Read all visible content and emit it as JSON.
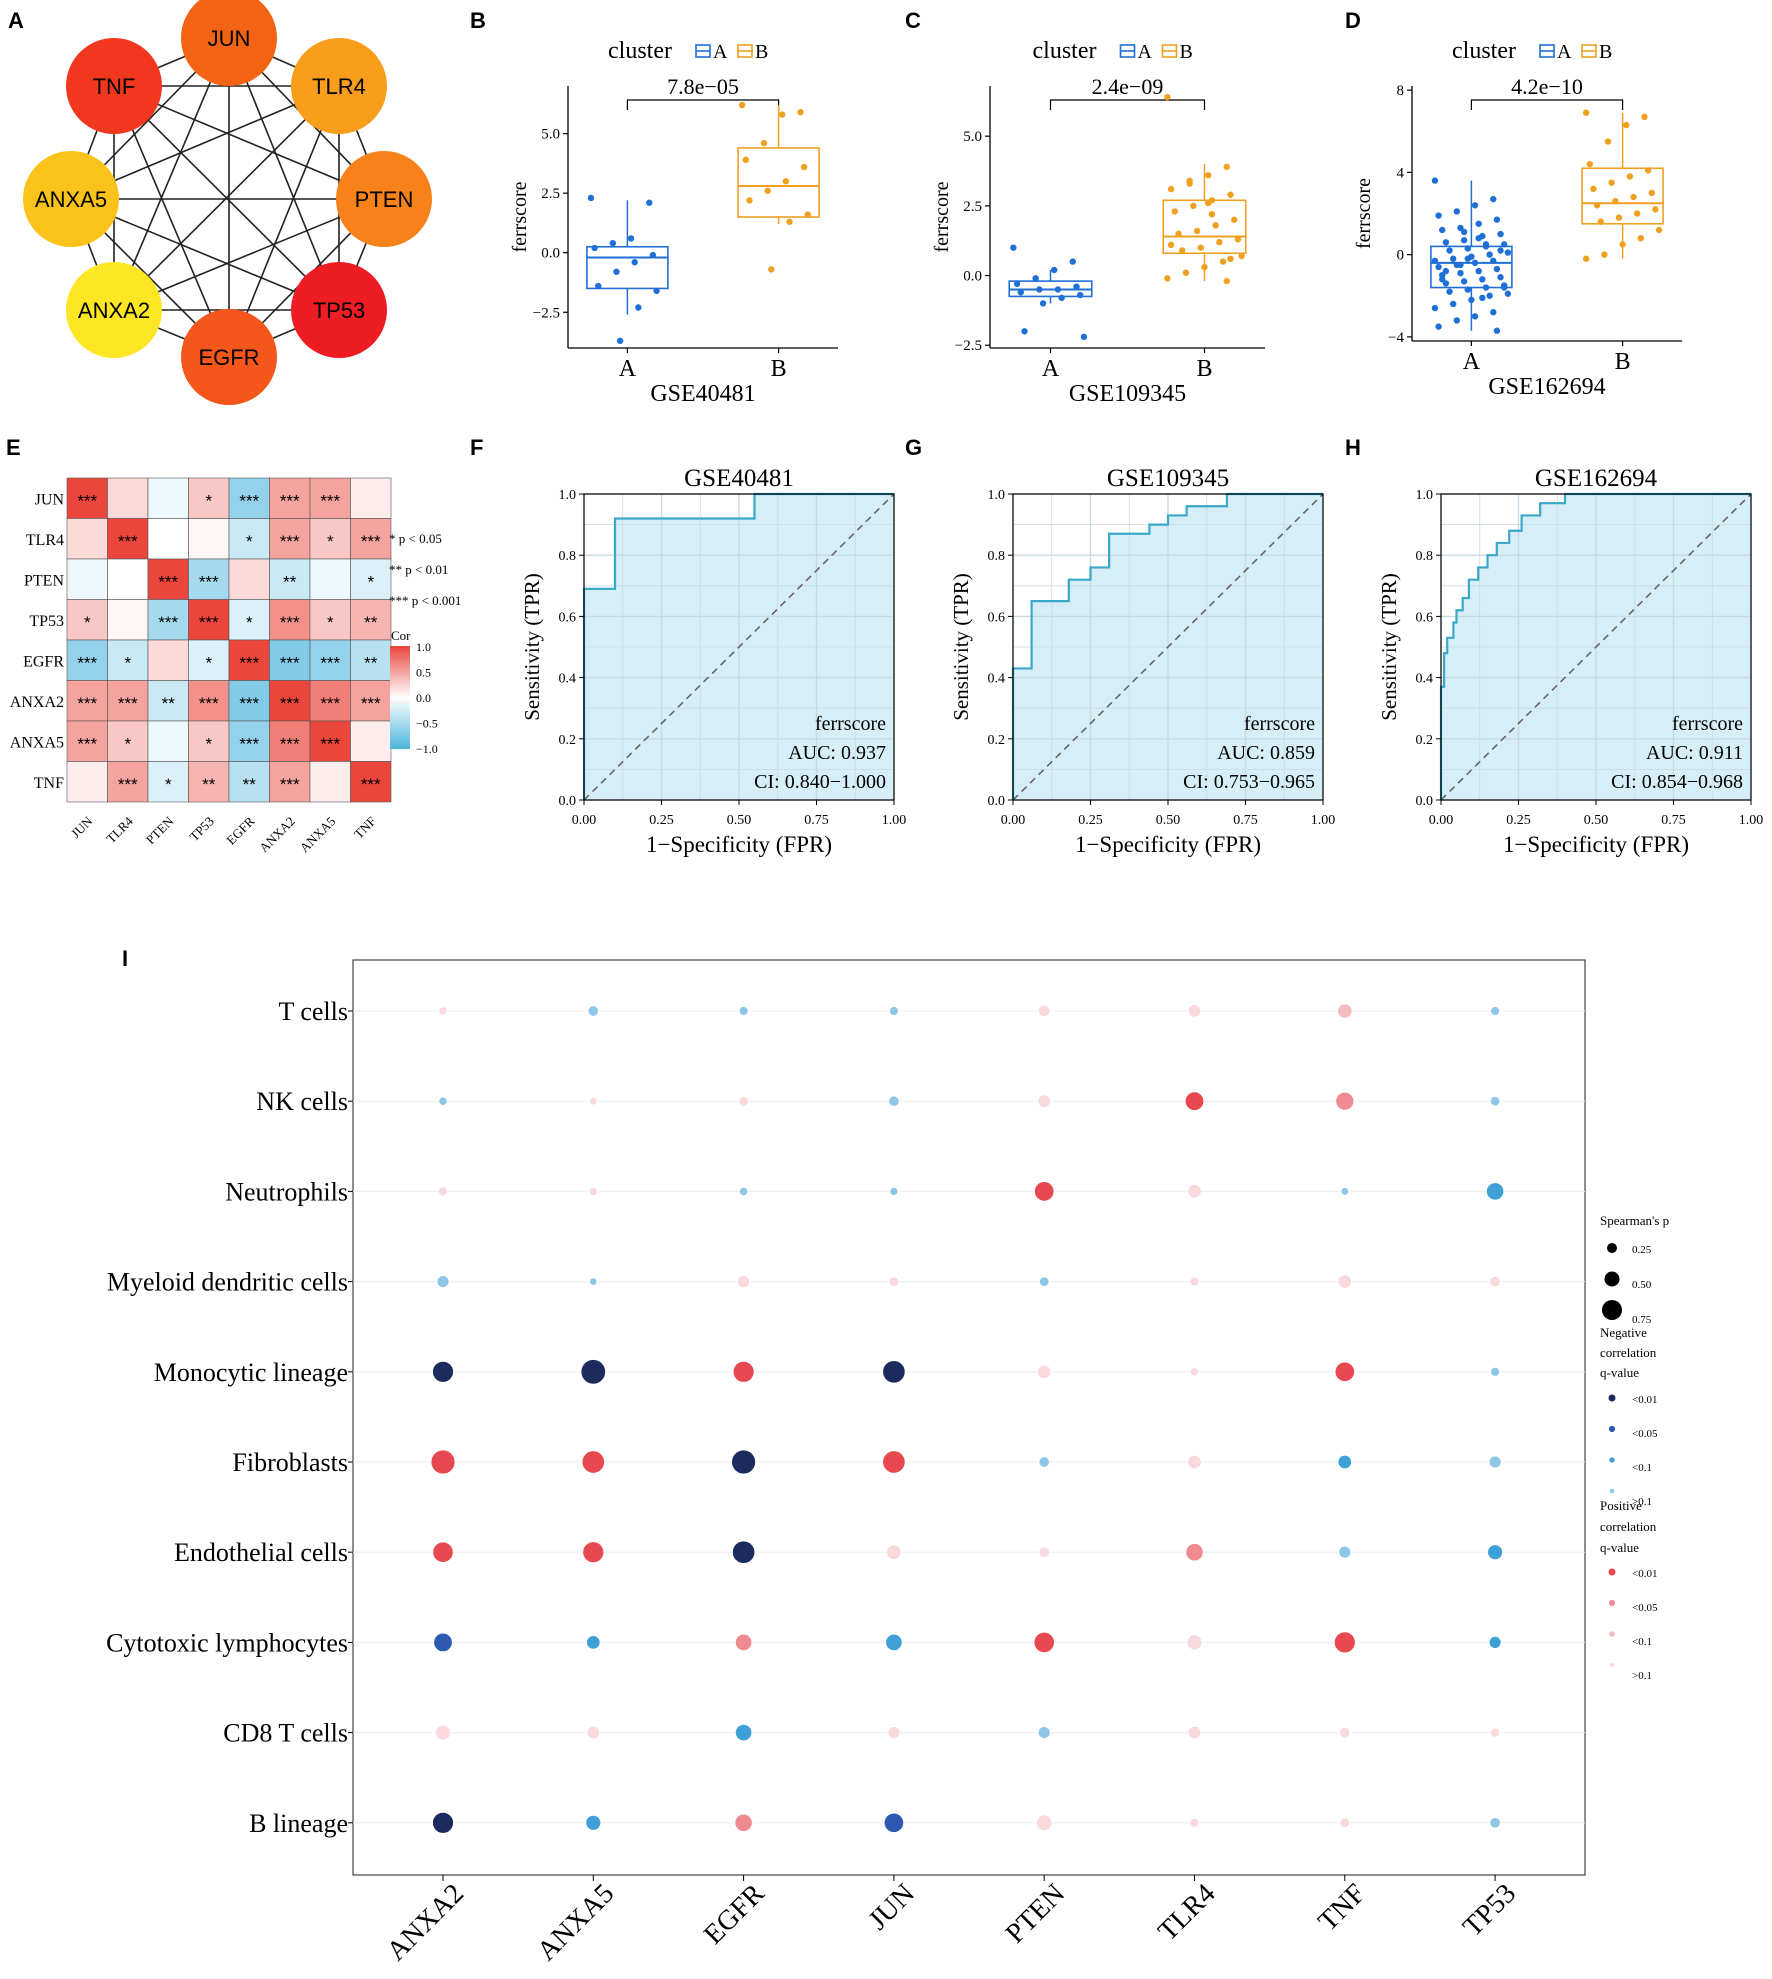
{
  "panels": [
    "A",
    "B",
    "C",
    "D",
    "E",
    "F",
    "G",
    "H",
    "I"
  ],
  "chart_data": [
    {
      "id": "A",
      "type": "network",
      "nodes": [
        {
          "name": "JUN",
          "color": "#f26313"
        },
        {
          "name": "TLR4",
          "color": "#f99d1c"
        },
        {
          "name": "PTEN",
          "color": "#f7821a"
        },
        {
          "name": "TP53",
          "color": "#ee1c23"
        },
        {
          "name": "EGFR",
          "color": "#f4561b"
        },
        {
          "name": "ANXA2",
          "color": "#fde724"
        },
        {
          "name": "ANXA5",
          "color": "#fbc21b"
        },
        {
          "name": "TNF",
          "color": "#f1381f"
        }
      ],
      "edges": "complete"
    },
    {
      "id": "B",
      "type": "box",
      "legend_title": "cluster",
      "legend_entries": [
        "A",
        "B"
      ],
      "groups": [
        "A",
        "B"
      ],
      "xlabel": "GSE40481",
      "ylabel": "ferrscore",
      "pvalue": "7.8e−05",
      "yticks": [
        -2.5,
        0,
        2.5,
        5.0
      ],
      "ytick_labels": [
        "−2.5",
        "0.0",
        "2.5",
        "5.0"
      ],
      "ylim": [
        -4.0,
        7.0
      ],
      "stats": [
        {
          "q1": -1.5,
          "median": -0.2,
          "q3": 0.25,
          "wlo": -2.6,
          "whi": 2.2
        },
        {
          "q1": 1.5,
          "median": 2.8,
          "q3": 4.4,
          "wlo": 1.2,
          "whi": 6.2
        }
      ],
      "points": [
        [
          2.3,
          2.1,
          0.6,
          0.4,
          0.2,
          -0.1,
          -0.4,
          -0.8,
          -1.4,
          -1.6,
          -2.3,
          -3.7
        ],
        [
          6.2,
          5.9,
          5.8,
          4.6,
          3.9,
          3.6,
          3.0,
          2.6,
          2.2,
          1.6,
          1.3,
          -0.7
        ]
      ]
    },
    {
      "id": "C",
      "type": "box",
      "legend_title": "cluster",
      "legend_entries": [
        "A",
        "B"
      ],
      "groups": [
        "A",
        "B"
      ],
      "xlabel": "GSE109345",
      "ylabel": "ferrscore",
      "pvalue": "2.4e−09",
      "yticks": [
        -2.5,
        0,
        2.5,
        5.0
      ],
      "ytick_labels": [
        "−2.5",
        "0.0",
        "2.5",
        "5.0"
      ],
      "ylim": [
        -2.6,
        6.8
      ],
      "stats": [
        {
          "q1": -0.75,
          "median": -0.5,
          "q3": -0.2,
          "wlo": -1.0,
          "whi": 0.2
        },
        {
          "q1": 0.8,
          "median": 1.4,
          "q3": 2.7,
          "wlo": -0.2,
          "whi": 4.0
        }
      ],
      "points": [
        [
          1.0,
          0.5,
          0.2,
          -0.1,
          -0.3,
          -0.4,
          -0.5,
          -0.5,
          -0.6,
          -0.7,
          -0.8,
          -1.0,
          -2.0,
          -2.2
        ],
        [
          6.4,
          3.9,
          3.6,
          3.3,
          3.1,
          2.9,
          2.7,
          2.5,
          2.3,
          2.0,
          1.8,
          1.6,
          1.5,
          1.3,
          1.2,
          1.0,
          0.9,
          0.7,
          0.5,
          0.3,
          0.1,
          -0.1,
          -0.2,
          2.6,
          3.4,
          1.1,
          0.6,
          2.2
        ]
      ]
    },
    {
      "id": "D",
      "type": "box",
      "legend_title": "cluster",
      "legend_entries": [
        "A",
        "B"
      ],
      "groups": [
        "A",
        "B"
      ],
      "xlabel": "GSE162694",
      "ylabel": "ferrscore",
      "pvalue": "4.2e−10",
      "yticks": [
        -4,
        0,
        4,
        8
      ],
      "ytick_labels": [
        "−4",
        "0",
        "4",
        "8"
      ],
      "ylim": [
        -4.2,
        8.2
      ],
      "stats": [
        {
          "q1": -1.6,
          "median": -0.4,
          "q3": 0.4,
          "wlo": -3.7,
          "whi": 3.6
        },
        {
          "q1": 1.5,
          "median": 2.5,
          "q3": 4.2,
          "wlo": -0.2,
          "whi": 6.9
        }
      ],
      "points": [
        [
          3.6,
          2.7,
          2.4,
          2.1,
          1.9,
          1.7,
          1.5,
          1.3,
          1.2,
          1.0,
          0.9,
          0.7,
          0.6,
          0.5,
          0.4,
          0.3,
          0.2,
          0.1,
          0.0,
          -0.1,
          -0.2,
          -0.3,
          -0.3,
          -0.4,
          -0.5,
          -0.6,
          -0.7,
          -0.8,
          -0.9,
          -1.0,
          -1.1,
          -1.2,
          -1.3,
          -1.4,
          -1.5,
          -1.6,
          -1.7,
          -1.8,
          -1.9,
          -2.0,
          -2.2,
          -2.4,
          -2.6,
          -2.8,
          -3.0,
          -3.2,
          -3.5,
          -3.7,
          0.8,
          -0.5,
          -1.2,
          0.2,
          -2.1,
          1.1,
          -0.8,
          -1.6,
          0.5,
          -0.2
        ],
        [
          6.9,
          6.7,
          6.3,
          5.5,
          4.4,
          4.1,
          3.8,
          3.5,
          3.2,
          3.0,
          2.8,
          2.6,
          2.4,
          2.2,
          2.0,
          1.8,
          1.6,
          1.2,
          0.8,
          0.5,
          0.0,
          -0.2
        ]
      ]
    },
    {
      "id": "E",
      "type": "heatmap",
      "labels": [
        "JUN",
        "TLR4",
        "PTEN",
        "TP53",
        "EGFR",
        "ANXA2",
        "ANXA5",
        "TNF"
      ],
      "matrix": [
        [
          1.0,
          0.2,
          -0.1,
          0.3,
          -0.6,
          0.5,
          0.5,
          0.1
        ],
        [
          0.2,
          1.0,
          0.0,
          0.05,
          -0.3,
          0.5,
          0.3,
          0.5
        ],
        [
          -0.1,
          0.0,
          1.0,
          -0.5,
          0.2,
          -0.3,
          -0.1,
          -0.2
        ],
        [
          0.3,
          0.05,
          -0.5,
          1.0,
          -0.2,
          0.6,
          0.3,
          0.4
        ],
        [
          -0.6,
          -0.3,
          0.2,
          -0.2,
          1.0,
          -0.7,
          -0.6,
          -0.4
        ],
        [
          0.5,
          0.5,
          -0.3,
          0.6,
          -0.7,
          1.0,
          0.7,
          0.5
        ],
        [
          0.5,
          0.3,
          -0.1,
          0.3,
          -0.6,
          0.7,
          1.0,
          0.1
        ],
        [
          0.1,
          0.5,
          -0.2,
          0.4,
          -0.4,
          0.5,
          0.1,
          1.0
        ]
      ],
      "stars": [
        [
          "***",
          "",
          "",
          "*",
          "***",
          "***",
          "***",
          ""
        ],
        [
          "",
          "***",
          "",
          "",
          "*",
          "***",
          "*",
          "***"
        ],
        [
          "",
          "",
          "***",
          "***",
          "",
          "**",
          "",
          "*"
        ],
        [
          "*",
          "",
          "***",
          "***",
          "*",
          "***",
          "*",
          "**"
        ],
        [
          "***",
          "*",
          "",
          "*",
          "***",
          "***",
          "***",
          "**"
        ],
        [
          "***",
          "***",
          "**",
          "***",
          "***",
          "***",
          "***",
          "***"
        ],
        [
          "***",
          "*",
          "",
          "*",
          "***",
          "***",
          "***",
          ""
        ],
        [
          "",
          "***",
          "*",
          "**",
          "**",
          "***",
          "",
          "***"
        ]
      ],
      "sig_legend": [
        "* p < 0.05",
        "** p < 0.01",
        "*** p < 0.001"
      ],
      "colorbar_title": "Cor",
      "colorbar_ticks": [
        "1.0",
        "0.5",
        "0.0",
        "−0.5",
        "−1.0"
      ]
    },
    {
      "id": "F",
      "type": "roc",
      "title": "GSE40481",
      "xlabel": "1−Specificity (FPR)",
      "ylabel": "Sensitivity (TPR)",
      "xticks": [
        "0.00",
        "0.25",
        "0.50",
        "0.75",
        "1.00"
      ],
      "yticks": [
        "0.0",
        "0.2",
        "0.4",
        "0.6",
        "0.8",
        "1.0"
      ],
      "legend": [
        "ferrscore",
        "AUC: 0.937",
        "CI: 0.840−1.000"
      ],
      "curve": [
        [
          0,
          0
        ],
        [
          0,
          0.69
        ],
        [
          0.1,
          0.69
        ],
        [
          0.1,
          0.92
        ],
        [
          0.55,
          0.92
        ],
        [
          0.55,
          1.0
        ],
        [
          1.0,
          1.0
        ]
      ]
    },
    {
      "id": "G",
      "type": "roc",
      "title": "GSE109345",
      "xlabel": "1−Specificity (FPR)",
      "ylabel": "Sensitivity (TPR)",
      "xticks": [
        "0.00",
        "0.25",
        "0.50",
        "0.75",
        "1.00"
      ],
      "yticks": [
        "0.0",
        "0.2",
        "0.4",
        "0.6",
        "0.8",
        "1.0"
      ],
      "legend": [
        "ferrscore",
        "AUC: 0.859",
        "CI: 0.753−0.965"
      ],
      "curve": [
        [
          0,
          0
        ],
        [
          0,
          0.43
        ],
        [
          0.06,
          0.43
        ],
        [
          0.06,
          0.65
        ],
        [
          0.18,
          0.65
        ],
        [
          0.18,
          0.72
        ],
        [
          0.25,
          0.72
        ],
        [
          0.25,
          0.76
        ],
        [
          0.31,
          0.76
        ],
        [
          0.31,
          0.87
        ],
        [
          0.44,
          0.87
        ],
        [
          0.44,
          0.9
        ],
        [
          0.5,
          0.9
        ],
        [
          0.5,
          0.93
        ],
        [
          0.56,
          0.93
        ],
        [
          0.56,
          0.96
        ],
        [
          0.69,
          0.96
        ],
        [
          0.69,
          1.0
        ],
        [
          1.0,
          1.0
        ]
      ]
    },
    {
      "id": "H",
      "type": "roc",
      "title": "GSE162694",
      "xlabel": "1−Specificity (FPR)",
      "ylabel": "Sensitivity (TPR)",
      "xticks": [
        "0.00",
        "0.25",
        "0.50",
        "0.75",
        "1.00"
      ],
      "yticks": [
        "0.0",
        "0.2",
        "0.4",
        "0.6",
        "0.8",
        "1.0"
      ],
      "legend": [
        "ferrscore",
        "AUC: 0.911",
        "CI: 0.854−0.968"
      ],
      "curve": [
        [
          0,
          0
        ],
        [
          0,
          0.37
        ],
        [
          0.01,
          0.37
        ],
        [
          0.01,
          0.48
        ],
        [
          0.02,
          0.48
        ],
        [
          0.02,
          0.53
        ],
        [
          0.04,
          0.53
        ],
        [
          0.04,
          0.58
        ],
        [
          0.05,
          0.58
        ],
        [
          0.05,
          0.62
        ],
        [
          0.07,
          0.62
        ],
        [
          0.07,
          0.66
        ],
        [
          0.09,
          0.66
        ],
        [
          0.09,
          0.72
        ],
        [
          0.12,
          0.72
        ],
        [
          0.12,
          0.76
        ],
        [
          0.15,
          0.76
        ],
        [
          0.15,
          0.8
        ],
        [
          0.18,
          0.8
        ],
        [
          0.18,
          0.84
        ],
        [
          0.22,
          0.84
        ],
        [
          0.22,
          0.88
        ],
        [
          0.26,
          0.88
        ],
        [
          0.26,
          0.93
        ],
        [
          0.32,
          0.93
        ],
        [
          0.32,
          0.97
        ],
        [
          0.4,
          0.97
        ],
        [
          0.4,
          1.0
        ],
        [
          1.0,
          1.0
        ]
      ]
    },
    {
      "id": "I",
      "type": "bubble",
      "rows": [
        "T cells",
        "NK cells",
        "Neutrophils",
        "Myeloid dendritic cells",
        "Monocytic lineage",
        "Fibroblasts",
        "Endothelial cells",
        "Cytotoxic lymphocytes",
        "CD8 T cells",
        "B lineage"
      ],
      "cols": [
        "ANXA2",
        "ANXA5",
        "EGFR",
        "JUN",
        "PTEN",
        "TLR4",
        "TNF",
        "TP53"
      ],
      "rho": [
        [
          0.08,
          -0.15,
          -0.1,
          -0.1,
          0.18,
          0.22,
          0.28,
          -0.1
        ],
        [
          -0.08,
          0.05,
          0.12,
          -0.15,
          0.22,
          0.42,
          0.4,
          -0.12
        ],
        [
          0.1,
          0.08,
          -0.08,
          -0.07,
          0.45,
          0.25,
          -0.06,
          -0.38
        ],
        [
          -0.2,
          -0.05,
          0.2,
          0.12,
          -0.12,
          0.1,
          0.25,
          0.15
        ],
        [
          -0.5,
          -0.62,
          0.5,
          -0.55,
          0.25,
          0.08,
          0.45,
          -0.1
        ],
        [
          0.6,
          0.55,
          -0.6,
          0.55,
          -0.15,
          0.25,
          -0.25,
          -0.2
        ],
        [
          0.48,
          0.5,
          -0.55,
          0.28,
          0.15,
          0.38,
          -0.2,
          -0.3
        ],
        [
          -0.42,
          -0.25,
          0.35,
          -0.35,
          0.48,
          0.3,
          0.5,
          -0.2
        ],
        [
          0.3,
          0.22,
          -0.35,
          0.2,
          -0.2,
          0.22,
          0.15,
          0.1
        ],
        [
          -0.5,
          -0.3,
          0.38,
          -0.45,
          0.32,
          0.1,
          0.12,
          -0.15
        ]
      ],
      "q": [
        [
          ">0.1",
          ">0.1",
          ">0.1",
          ">0.1",
          ">0.1",
          ">0.1",
          "<0.1",
          ">0.1"
        ],
        [
          ">0.1",
          ">0.1",
          ">0.1",
          ">0.1",
          ">0.1",
          "<0.01",
          "<0.05",
          ">0.1"
        ],
        [
          ">0.1",
          ">0.1",
          ">0.1",
          ">0.1",
          "<0.01",
          ">0.1",
          ">0.1",
          "<0.1"
        ],
        [
          ">0.1",
          ">0.1",
          ">0.1",
          ">0.1",
          ">0.1",
          ">0.1",
          ">0.1",
          ">0.1"
        ],
        [
          "<0.01",
          "<0.01",
          "<0.01",
          "<0.01",
          ">0.1",
          ">0.1",
          "<0.01",
          ">0.1"
        ],
        [
          "<0.01",
          "<0.01",
          "<0.01",
          "<0.01",
          ">0.1",
          ">0.1",
          "<0.1",
          ">0.1"
        ],
        [
          "<0.01",
          "<0.01",
          "<0.01",
          ">0.1",
          ">0.1",
          "<0.05",
          ">0.1",
          "<0.1"
        ],
        [
          "<0.05",
          "<0.1",
          "<0.05",
          "<0.1",
          "<0.01",
          ">0.1",
          "<0.01",
          "<0.1"
        ],
        [
          ">0.1",
          ">0.1",
          "<0.1",
          ">0.1",
          ">0.1",
          ">0.1",
          ">0.1",
          ">0.1"
        ],
        [
          "<0.01",
          "<0.1",
          "<0.05",
          "<0.05",
          ">0.1",
          ">0.1",
          ">0.1",
          ">0.1"
        ]
      ],
      "legend": {
        "size_title": "Spearman's p",
        "size_labels": [
          "0.25",
          "0.50",
          "0.75"
        ],
        "neg_title": [
          "Negative",
          "correlation",
          "q-value"
        ],
        "pos_title": [
          "Positive",
          "correlation",
          "q-value"
        ],
        "q_labels": [
          "<0.01",
          "<0.05",
          "<0.1",
          ">0.1"
        ]
      }
    }
  ],
  "colors": {
    "clusterA": "#1f6fd6",
    "clusterB": "#f0a020",
    "neg": [
      "#1c2b5e",
      "#2d5ab0",
      "#3fa0d8",
      "#8ec6e8"
    ],
    "pos": [
      "#e8484f",
      "#ef8a90",
      "#f5bcbf",
      "#f9d9db"
    ],
    "roc_fill": "#d6eef7",
    "roc_line": "#3aa8c8"
  }
}
